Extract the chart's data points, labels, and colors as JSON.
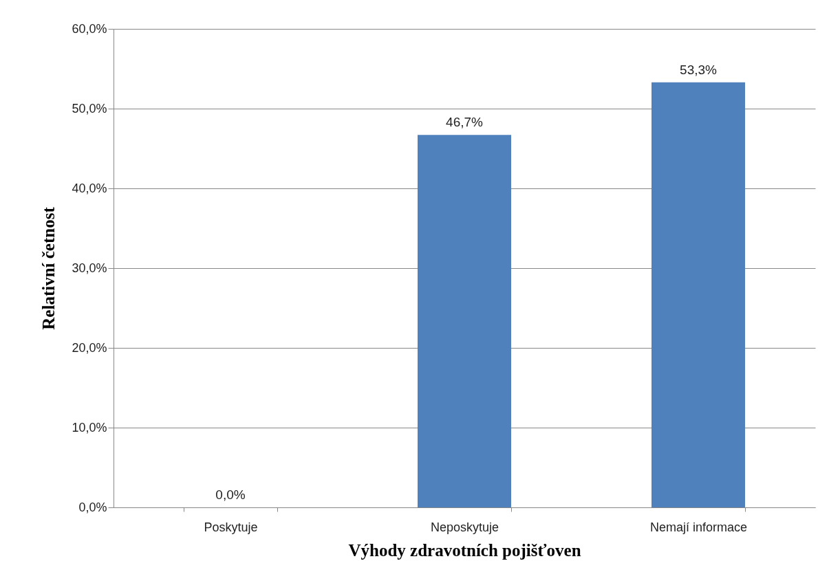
{
  "chart_data": {
    "type": "bar",
    "xlabel": "Výhody zdravotních pojišťoven",
    "ylabel": "Relativní četnost",
    "categories": [
      "Poskytuje",
      "Neposkytuje",
      "Nemají informace"
    ],
    "values": [
      0,
      46.7,
      53.3
    ],
    "color": "#4f81bd",
    "value_labels": [
      "0,0%",
      "46,7%",
      "53,3%"
    ],
    "ylim": [
      0,
      60
    ],
    "yticks": [
      {
        "value": 0,
        "label": "0,0%"
      },
      {
        "value": 10,
        "label": "10,0%"
      },
      {
        "value": 20,
        "label": "20,0%"
      },
      {
        "value": 30,
        "label": "30,0%"
      },
      {
        "value": 40,
        "label": "40,0%"
      },
      {
        "value": 50,
        "label": "50,0%"
      },
      {
        "value": 60,
        "label": "60,0%"
      }
    ],
    "grid": "y"
  }
}
